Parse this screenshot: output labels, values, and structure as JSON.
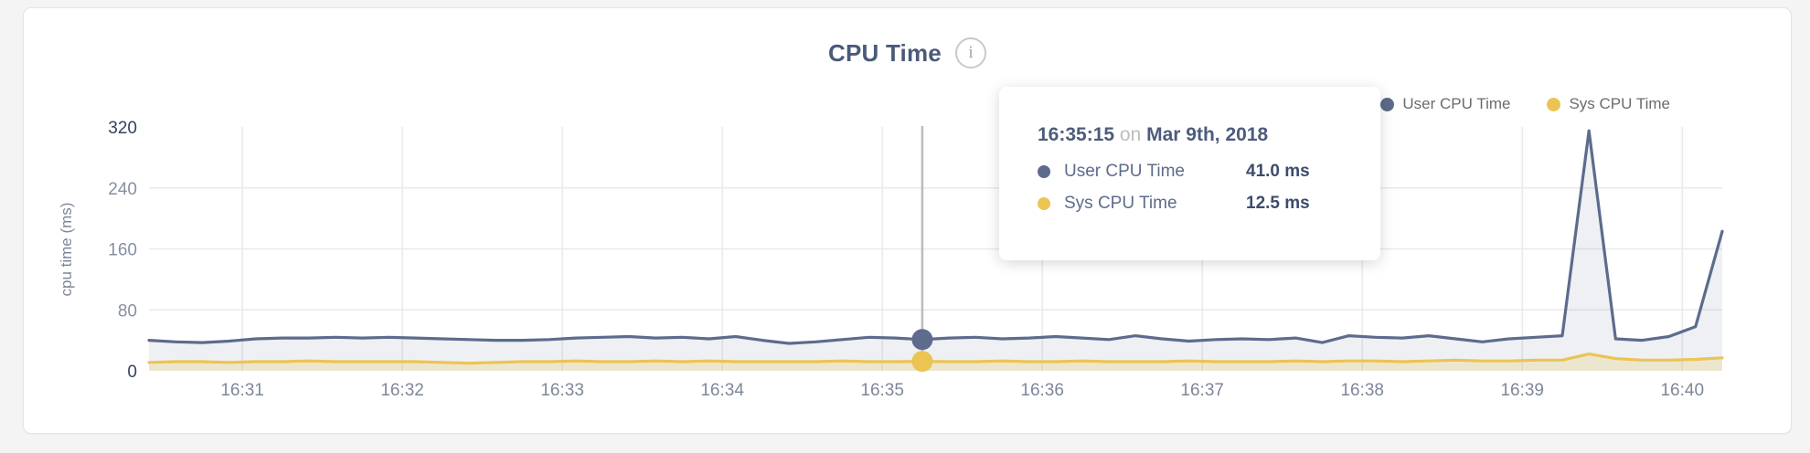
{
  "card": {
    "title": "CPU Time",
    "info_icon_glyph": "i"
  },
  "legend": [
    {
      "key": "user-cpu-time",
      "label": "User CPU Time",
      "color": "#5d6b8c"
    },
    {
      "key": "sys-cpu-time",
      "label": "Sys CPU Time",
      "color": "#ecc453"
    }
  ],
  "tooltip": {
    "time": "16:35:15",
    "connector": "on",
    "date": "Mar 9th, 2018",
    "rows": [
      {
        "key": "user-cpu-time",
        "label": "User CPU Time",
        "value": "41.0 ms",
        "color": "#5d6b8c"
      },
      {
        "key": "sys-cpu-time",
        "label": "Sys CPU Time",
        "value": "12.5 ms",
        "color": "#ecc453"
      }
    ]
  },
  "chart_data": {
    "type": "area",
    "title": "CPU Time",
    "xlabel": "",
    "ylabel": "cpu time (ms)",
    "ylim": [
      0,
      320
    ],
    "y_ticks": [
      0,
      80,
      160,
      240,
      320
    ],
    "x_ticks": [
      "16:31",
      "16:32",
      "16:33",
      "16:34",
      "16:35",
      "16:36",
      "16:37",
      "16:38",
      "16:39",
      "16:40"
    ],
    "grid": "horizontal 80/160/240, vertical at minute ticks",
    "legend_position": "top-right",
    "x": [
      "16:30:25",
      "16:30:35",
      "16:30:45",
      "16:30:55",
      "16:31:05",
      "16:31:15",
      "16:31:25",
      "16:31:35",
      "16:31:45",
      "16:31:55",
      "16:32:05",
      "16:32:15",
      "16:32:25",
      "16:32:35",
      "16:32:45",
      "16:32:55",
      "16:33:05",
      "16:33:15",
      "16:33:25",
      "16:33:35",
      "16:33:45",
      "16:33:55",
      "16:34:05",
      "16:34:15",
      "16:34:25",
      "16:34:35",
      "16:34:45",
      "16:34:55",
      "16:35:05",
      "16:35:15",
      "16:35:25",
      "16:35:35",
      "16:35:45",
      "16:35:55",
      "16:36:05",
      "16:36:15",
      "16:36:25",
      "16:36:35",
      "16:36:45",
      "16:36:55",
      "16:37:05",
      "16:37:15",
      "16:37:25",
      "16:37:35",
      "16:37:45",
      "16:37:55",
      "16:38:05",
      "16:38:15",
      "16:38:25",
      "16:38:35",
      "16:38:45",
      "16:38:55",
      "16:39:05",
      "16:39:15",
      "16:39:25",
      "16:39:35",
      "16:39:45",
      "16:39:55",
      "16:40:05",
      "16:40:15"
    ],
    "series": [
      {
        "name": "User CPU Time",
        "key": "user-cpu-time",
        "color": "#5d6b8c",
        "fill": "rgba(93,107,140,0.10)",
        "values": [
          40,
          38,
          37,
          39,
          42,
          43,
          43,
          44,
          43,
          44,
          43,
          42,
          41,
          40,
          40,
          41,
          43,
          44,
          45,
          43,
          44,
          42,
          45,
          40,
          36,
          38,
          41,
          44,
          43,
          41,
          43,
          44,
          42,
          43,
          45,
          43,
          41,
          46,
          42,
          39,
          41,
          42,
          41,
          43,
          37,
          46,
          44,
          43,
          46,
          42,
          38,
          42,
          44,
          46,
          315,
          42,
          40,
          45,
          58,
          183
        ]
      },
      {
        "name": "Sys CPU Time",
        "key": "sys-cpu-time",
        "color": "#ecc453",
        "fill": "rgba(236,196,83,0.22)",
        "values": [
          11,
          12,
          12,
          11,
          12,
          12,
          13,
          12,
          12,
          12,
          12,
          11,
          10,
          11,
          12,
          12,
          13,
          12,
          12,
          13,
          12,
          13,
          12,
          12,
          12,
          12,
          13,
          12,
          12,
          12.5,
          12,
          12,
          13,
          12,
          12,
          13,
          12,
          12,
          12,
          13,
          12,
          12,
          12,
          13,
          12,
          13,
          13,
          12,
          13,
          14,
          13,
          13,
          14,
          14,
          22,
          16,
          14,
          14,
          15,
          17
        ]
      }
    ],
    "highlight": {
      "x": "16:35:15",
      "values": {
        "User CPU Time": 41.0,
        "Sys CPU Time": 12.5
      }
    }
  },
  "colors": {
    "page_bg": "#f4f4f5",
    "card_bg": "#ffffff",
    "card_border": "#e4e4e6",
    "title": "#4a5a78",
    "gridline": "#e9e9eb",
    "crosshair": "#bcbcbe",
    "x_tick": "#7d8799",
    "y_tick_minor": "#878fa3",
    "y_tick_major": "#34415e",
    "axis_title": "#7d8799",
    "user_line": "#5d6b8c",
    "sys_line": "#ecc453"
  }
}
